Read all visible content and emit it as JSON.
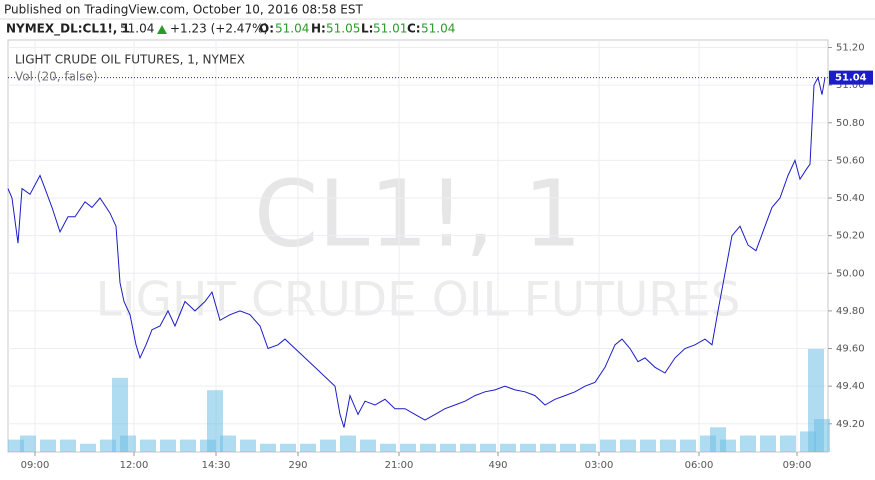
{
  "chart_data": {
    "type": "line",
    "header": {
      "published": "Published on TradingView.com, October 10, 2016 08:58 EST",
      "symbol": "NYMEX_DL:CL1!, 1",
      "price": "51.04",
      "change": "+1.23 (+2.47%)",
      "open_label": "O:",
      "open": "51.04",
      "high_label": "H:",
      "high": "51.05",
      "low_label": "L:",
      "low": "51.01",
      "close_label": "C:",
      "close": "51.04"
    },
    "legend_title": "LIGHT CRUDE OIL FUTURES, 1, NYMEX",
    "volume_label": "Vol (20, false)",
    "watermark": "CL1!, 1",
    "watermark_subtitle": "LIGHT CRUDE OIL FUTURES",
    "last_value": 51.04,
    "last_value_label": "51.04",
    "x": [
      0,
      4,
      10,
      14,
      22,
      32,
      37,
      44,
      52,
      60,
      67,
      77,
      84,
      92,
      102,
      108,
      112,
      116,
      122,
      128,
      132,
      138,
      144,
      152,
      160,
      167,
      177,
      187,
      197,
      204,
      212,
      222,
      232,
      242,
      252,
      260,
      270,
      277,
      287,
      297,
      307,
      317,
      327,
      332,
      336,
      342,
      350,
      357,
      367,
      377,
      387,
      397,
      407,
      417,
      427,
      437,
      447,
      457,
      467,
      477,
      487,
      497,
      507,
      517,
      527,
      537,
      547,
      557,
      567,
      577,
      587,
      597,
      607,
      614,
      622,
      630,
      637,
      647,
      657,
      667,
      677,
      687,
      697,
      704,
      710,
      717,
      724,
      732,
      740,
      748,
      757,
      764,
      772,
      780,
      787,
      792,
      798,
      802,
      806,
      810,
      814,
      817
    ],
    "series": [
      {
        "name": "CL1!",
        "color": "#1c1cc8",
        "values": [
          50.45,
          50.4,
          50.16,
          50.45,
          50.42,
          50.52,
          50.45,
          50.35,
          50.22,
          50.3,
          50.3,
          50.38,
          50.35,
          50.4,
          50.32,
          50.25,
          49.95,
          49.85,
          49.78,
          49.62,
          49.55,
          49.62,
          49.7,
          49.72,
          49.8,
          49.72,
          49.85,
          49.8,
          49.85,
          49.9,
          49.75,
          49.78,
          49.8,
          49.78,
          49.72,
          49.6,
          49.62,
          49.65,
          49.6,
          49.55,
          49.5,
          49.45,
          49.4,
          49.25,
          49.18,
          49.35,
          49.25,
          49.32,
          49.3,
          49.33,
          49.28,
          49.28,
          49.25,
          49.22,
          49.25,
          49.28,
          49.3,
          49.32,
          49.35,
          49.37,
          49.38,
          49.4,
          49.38,
          49.37,
          49.35,
          49.3,
          49.33,
          49.35,
          49.37,
          49.4,
          49.42,
          49.5,
          49.62,
          49.65,
          49.6,
          49.53,
          49.55,
          49.5,
          49.47,
          49.55,
          49.6,
          49.62,
          49.65,
          49.62,
          49.8,
          50.0,
          50.2,
          50.25,
          50.15,
          50.12,
          50.25,
          50.35,
          50.4,
          50.52,
          50.6,
          50.5,
          50.55,
          50.58,
          51.0,
          51.04,
          50.95,
          51.04
        ]
      }
    ],
    "volume": {
      "color": "#6fbfe6",
      "x": [
        0,
        20,
        40,
        60,
        80,
        100,
        112,
        120,
        140,
        160,
        180,
        200,
        207,
        220,
        240,
        260,
        280,
        300,
        320,
        340,
        360,
        380,
        400,
        420,
        440,
        460,
        480,
        500,
        520,
        540,
        560,
        580,
        600,
        620,
        640,
        660,
        680,
        700,
        710,
        720,
        740,
        760,
        780,
        800,
        808,
        814
      ],
      "values": [
        3,
        4,
        3,
        3,
        2,
        3,
        18,
        4,
        3,
        3,
        3,
        3,
        15,
        4,
        3,
        2,
        2,
        2,
        3,
        4,
        3,
        2,
        2,
        2,
        2,
        2,
        2,
        2,
        2,
        2,
        2,
        2,
        3,
        3,
        3,
        3,
        3,
        4,
        6,
        3,
        4,
        4,
        4,
        5,
        25,
        8
      ]
    },
    "xlim": [
      0,
      820
    ],
    "ylim": [
      49.05,
      51.24
    ],
    "y2lim": [
      0,
      100
    ],
    "xticks": [
      {
        "value": 27,
        "label": "09:00"
      },
      {
        "value": 126,
        "label": "12:00"
      },
      {
        "value": 208,
        "label": "14:30"
      },
      290,
      {
        "value": 391,
        "label": "21:00"
      },
      490,
      {
        "value": 591,
        "label": "03:00"
      },
      {
        "value": 691,
        "label": "06:00"
      },
      {
        "value": 789,
        "label": "09:00"
      }
    ],
    "yticks": [
      {
        "value": 49.2,
        "label": "49.20"
      },
      {
        "value": 49.4,
        "label": "49.40"
      },
      {
        "value": 49.6,
        "label": "49.60"
      },
      {
        "value": 49.8,
        "label": "49.80"
      },
      {
        "value": 50,
        "label": "50.00"
      },
      {
        "value": 50.2,
        "label": "50.20"
      },
      {
        "value": 50.4,
        "label": "50.40"
      },
      {
        "value": 50.6,
        "label": "50.60"
      },
      {
        "value": 50.8,
        "label": "50.80"
      },
      {
        "value": 51,
        "label": "51.00"
      },
      {
        "value": 51.2,
        "label": "51.20"
      }
    ],
    "grid": true
  }
}
